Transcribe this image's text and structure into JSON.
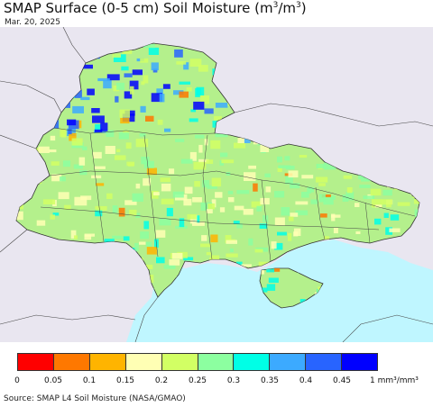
{
  "title": {
    "main": "SMAP Surface (0-5 cm) Soil Moisture (m",
    "sup1": "3",
    "mid": "/m",
    "sup2": "3",
    "end": ")"
  },
  "date": "Mar. 20, 2025",
  "legend": {
    "colors": [
      "#fe0000",
      "#fe7800",
      "#ffb400",
      "#ffffb4",
      "#d2ff64",
      "#8cffa0",
      "#00ffe6",
      "#3caaff",
      "#2864ff",
      "#0000ff"
    ],
    "ticks": [
      "0",
      "0.05",
      "0.1",
      "0.15",
      "0.2",
      "0.25",
      "0.3",
      "0.35",
      "0.4",
      "0.45"
    ],
    "unit": "1 mm³/mm³"
  },
  "source": "Source: SMAP L4 Soil Moisture (NASA/GMAO)",
  "map": {
    "background": "#e9e6f0",
    "sea_color": "#bff6ff",
    "land_base": "#b4f08c",
    "border_color": "#333333"
  }
}
